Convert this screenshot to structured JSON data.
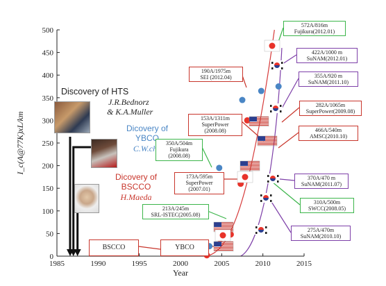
{
  "chart_data": {
    "type": "scatter",
    "xlabel": "Year",
    "ylabel": "I_c(A@77K)xL/km",
    "xlim": [
      1985,
      2015
    ],
    "ylim": [
      0,
      500
    ],
    "xticks": [
      1985,
      1990,
      1995,
      2000,
      2005,
      2010,
      2015
    ],
    "yticks": [
      0,
      50,
      100,
      150,
      200,
      250,
      300,
      350,
      400,
      450,
      500
    ],
    "series": [
      {
        "name": "YBCO",
        "color": "#4a86c5",
        "x": [
          2003.5,
          2004.7,
          2007.5,
          2009.8,
          2011.9
        ],
        "y": [
          22,
          195,
          345,
          365,
          375
        ]
      },
      {
        "name": "BSCCO",
        "color": "#e8332a",
        "x": [
          2003.2,
          2004.8,
          2006.1,
          2007.3,
          2007.9,
          2008.1,
          2011.2
        ],
        "y": [
          2,
          38,
          48,
          160,
          175,
          300,
          465
        ]
      }
    ],
    "milestones": [
      {
        "label": [
          "Discovery of HTS",
          "J.R.Bednorz",
          "& K.A.Muller"
        ],
        "x": 1986.6
      },
      {
        "label": [
          "Dicovery of",
          "YBCO",
          "C.W.chu"
        ],
        "x": 1987.0
      },
      {
        "label": [
          "Dicovery of",
          "BSCCO",
          "H.Maeda"
        ],
        "x": 1987.5
      }
    ],
    "annotations": [
      {
        "lines": [
          "572A/816m",
          "Fujikura(2012.01)"
        ],
        "color": "#3bb54a"
      },
      {
        "lines": [
          "422A/1000 m",
          "SuNAM(2012.01)"
        ],
        "color": "#7d3fa8"
      },
      {
        "lines": [
          "190A/1975m",
          "SEI (2012.04)"
        ],
        "color": "#c8352b"
      },
      {
        "lines": [
          "355A/920 m",
          "SuNAM(2011.10)"
        ],
        "color": "#7d3fa8"
      },
      {
        "lines": [
          "282A/1065m",
          "SuperPower(2009.08)"
        ],
        "color": "#c8352b"
      },
      {
        "lines": [
          "153A/1311m",
          "SuperPower",
          "(2008.08)"
        ],
        "color": "#c8352b"
      },
      {
        "lines": [
          "466A/540m",
          "AMSC(2010.10)"
        ],
        "color": "#c8352b"
      },
      {
        "lines": [
          "350A/504m",
          "Fujikura",
          "(2008.08)"
        ],
        "color": "#3bb54a"
      },
      {
        "lines": [
          "173A/595m",
          "SuperPower",
          "(2007.01)"
        ],
        "color": "#c8352b"
      },
      {
        "lines": [
          "370A/470 m",
          "SuNAM(2011.07)"
        ],
        "color": "#7d3fa8"
      },
      {
        "lines": [
          "213A/245m",
          "SRL-ISTEC(2005.08)"
        ],
        "color": "#3bb54a"
      },
      {
        "lines": [
          "310A/500m",
          "SWCC(2008.05)"
        ],
        "color": "#3bb54a"
      },
      {
        "lines": [
          "275A/470m",
          "SuNAM(2010.10)"
        ],
        "color": "#7d3fa8"
      }
    ],
    "box_labels": [
      {
        "text": "BSCCO",
        "color": "#c8352b"
      },
      {
        "text": "YBCO",
        "color": "#c8352b"
      }
    ]
  }
}
